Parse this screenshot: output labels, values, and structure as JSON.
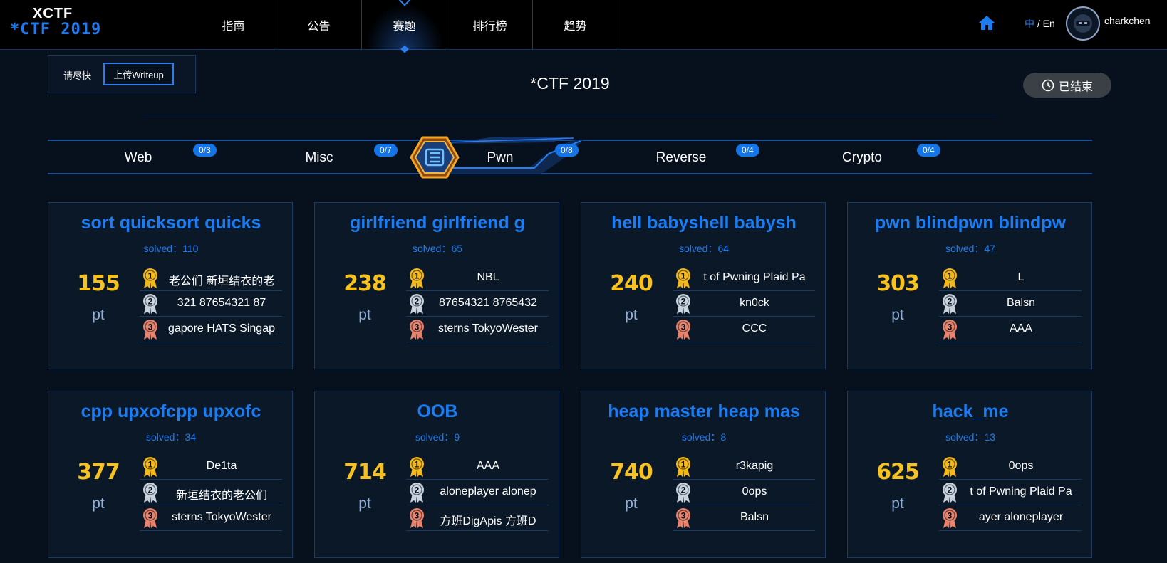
{
  "brand": {
    "top": "XCTF",
    "bottom": "*CTF 2019"
  },
  "nav": {
    "items": [
      "指南",
      "公告",
      "赛题",
      "排行榜",
      "趋势"
    ],
    "active": "赛题"
  },
  "user": {
    "lang_zh": "中",
    "lang_sep": " / ",
    "lang_en": "En",
    "name": "charkchen"
  },
  "header": {
    "hint": "请尽快",
    "upload_button": "上传Writeup",
    "title": "*CTF 2019",
    "status": "已结束"
  },
  "categories": [
    {
      "label": "Web",
      "progress": "0/3"
    },
    {
      "label": "Misc",
      "progress": "0/7"
    },
    {
      "label": "Pwn",
      "progress": "0/8"
    },
    {
      "label": "Reverse",
      "progress": "0/4"
    },
    {
      "label": "Crypto",
      "progress": "0/4"
    }
  ],
  "active_category": "Pwn",
  "colors": {
    "accent": "#1c7df2",
    "points": "#f7c120",
    "gold": "#f5b81a",
    "silver": "#c9d3de",
    "bronze": "#e8826a"
  },
  "challenges": [
    {
      "title": "sort   quicksort   quicks",
      "solved_label": "solved：",
      "solved": "110",
      "points": "155",
      "unit": "pt",
      "ranks": [
        "老公们    新垣结衣的老",
        "321    87654321    87",
        "gapore    HATS Singap"
      ]
    },
    {
      "title": "girlfriend   girlfriend   g",
      "solved_label": "solved：",
      "solved": "65",
      "points": "238",
      "unit": "pt",
      "ranks": [
        "NBL",
        "87654321    8765432",
        "sterns    TokyoWester"
      ]
    },
    {
      "title": "hell   babyshell   babysh",
      "solved_label": "solved：",
      "solved": "64",
      "points": "240",
      "unit": "pt",
      "ranks": [
        "t of Pwning    Plaid Pa",
        "kn0ck",
        "CCC"
      ]
    },
    {
      "title": "pwn   blindpwn   blindpw",
      "solved_label": "solved：",
      "solved": "47",
      "points": "303",
      "unit": "pt",
      "ranks": [
        "L",
        "Balsn",
        "AAA"
      ]
    },
    {
      "title": "cpp   upxofcpp   upxofc",
      "solved_label": "solved：",
      "solved": "34",
      "points": "377",
      "unit": "pt",
      "ranks": [
        "De1ta",
        "新垣结衣的老公们",
        "sterns    TokyoWester"
      ]
    },
    {
      "title": "OOB",
      "solved_label": "solved：",
      "solved": "9",
      "points": "714",
      "unit": "pt",
      "ranks": [
        "AAA",
        "aloneplayer    alonep",
        "方班DigApis    方班D"
      ]
    },
    {
      "title": "heap master   heap mas",
      "solved_label": "solved：",
      "solved": "8",
      "points": "740",
      "unit": "pt",
      "ranks": [
        "r3kapig",
        "0ops",
        "Balsn"
      ]
    },
    {
      "title": "hack_me",
      "solved_label": "solved：",
      "solved": "13",
      "points": "625",
      "unit": "pt",
      "ranks": [
        "0ops",
        "t of Pwning    Plaid Pa",
        "ayer    aloneplayer"
      ]
    }
  ]
}
